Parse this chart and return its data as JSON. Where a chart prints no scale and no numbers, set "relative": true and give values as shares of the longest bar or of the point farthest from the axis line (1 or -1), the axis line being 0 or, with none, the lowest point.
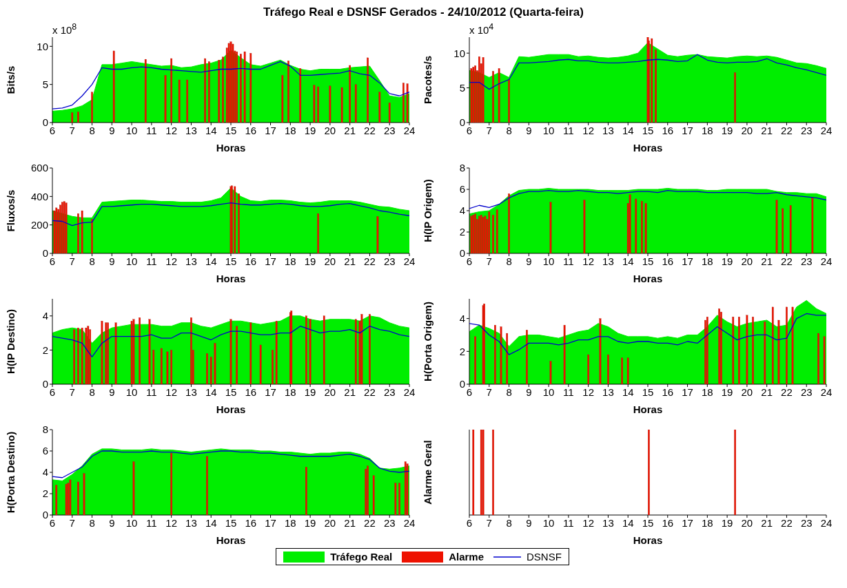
{
  "chart_data": [
    {
      "type": "area",
      "title": "Tráfego Real e DSNSF Gerados - 24/10/2012 (Quarta-feira)",
      "xlabel": "Horas",
      "ylabel": "Bits/s",
      "annotations": [
        "x 10$^{8}$"
      ],
      "legend": "bottom",
      "xlim": [
        6,
        24
      ],
      "xticks": [
        6,
        7,
        8,
        9,
        10,
        11,
        12,
        13,
        14,
        15,
        16,
        17,
        18,
        19,
        20,
        21,
        22,
        23,
        24
      ],
      "ylim": [
        0,
        11.2
      ],
      "yticks": [
        0,
        5,
        10
      ],
      "x": [
        6,
        6.5,
        7,
        7.5,
        8,
        8.5,
        9,
        9.5,
        10,
        10.5,
        11,
        11.5,
        12,
        12.5,
        13,
        13.5,
        14,
        14.5,
        15,
        15.5,
        16,
        16.5,
        17,
        17.5,
        18,
        18.5,
        19,
        19.5,
        20,
        20.5,
        21,
        21.5,
        22,
        22.5,
        23,
        23.5,
        24
      ],
      "series": [
        {
          "name": "Tráfego Real",
          "color": "#00ee00",
          "values": [
            1.5,
            1.6,
            1.8,
            2.2,
            3,
            7.6,
            7.6,
            7.8,
            8,
            7.8,
            7.6,
            7.4,
            7.5,
            7.2,
            7.3,
            7.6,
            7.8,
            8.2,
            9.5,
            8.5,
            7.6,
            7.4,
            7.8,
            8.2,
            7.5,
            7,
            6.8,
            7,
            7,
            7,
            7.2,
            7.3,
            7.4,
            5.5,
            3.5,
            3.3,
            3.8
          ]
        },
        {
          "name": "Alarme",
          "type": "bar",
          "color": "#ee1100",
          "x": [
            7,
            7.3,
            8,
            9.1,
            10.7,
            11.7,
            12,
            12.4,
            12.8,
            13.7,
            13.9,
            14.4,
            14.6,
            14.8,
            14.9,
            15,
            15.1,
            15.2,
            15.3,
            15.5,
            15.7,
            16,
            17.6,
            17.9,
            18.5,
            19.2,
            19.4,
            20,
            20.6,
            21,
            21.3,
            21.9,
            22.5,
            23,
            23.7,
            23.9
          ],
          "values": [
            1.3,
            1.4,
            4,
            9.4,
            8.3,
            6.2,
            8.4,
            5.6,
            5.6,
            8.4,
            8,
            8.2,
            8.6,
            9.8,
            10.4,
            10.6,
            10.3,
            9.4,
            9.3,
            9,
            9.3,
            9.1,
            6.2,
            8.1,
            7.1,
            4.9,
            4.7,
            4.8,
            4.6,
            7.5,
            5,
            8.5,
            4,
            2.6,
            5.2,
            5.1
          ]
        },
        {
          "name": "DSNSF",
          "type": "line",
          "color": "#0000cc",
          "values": [
            1.8,
            1.9,
            2.3,
            3.5,
            5,
            7.2,
            7,
            7,
            7.2,
            7.3,
            7.2,
            7,
            6.9,
            6.8,
            6.7,
            6.6,
            6.8,
            7,
            7,
            7.1,
            7,
            7,
            7.5,
            8,
            7.4,
            6.2,
            6.2,
            6.3,
            6.4,
            6.5,
            6.8,
            6.4,
            6.2,
            5.2,
            3.8,
            3.5,
            4
          ]
        }
      ]
    },
    {
      "type": "area",
      "xlabel": "Horas",
      "ylabel": "Pacotes/s",
      "annotations": [
        "x 10$^{4}$"
      ],
      "xlim": [
        6,
        24
      ],
      "xticks": [
        6,
        7,
        8,
        9,
        10,
        11,
        12,
        13,
        14,
        15,
        16,
        17,
        18,
        19,
        20,
        21,
        22,
        23,
        24
      ],
      "ylim": [
        0,
        12.3
      ],
      "yticks": [
        0,
        5,
        10
      ],
      "x": [
        6,
        6.5,
        7,
        7.5,
        8,
        8.5,
        9,
        9.5,
        10,
        10.5,
        11,
        11.5,
        12,
        12.5,
        13,
        13.5,
        14,
        14.5,
        15,
        15.5,
        16,
        16.5,
        17,
        17.5,
        18,
        18.5,
        19,
        19.5,
        20,
        20.5,
        21,
        21.5,
        22,
        22.5,
        23,
        23.5,
        24
      ],
      "series": [
        {
          "name": "Tráfego Real",
          "color": "#00ee00",
          "values": [
            7.5,
            7.2,
            6.5,
            7.2,
            6.5,
            9.5,
            9.4,
            9.6,
            9.8,
            9.8,
            9.8,
            9.5,
            9.6,
            9.4,
            9.3,
            9.4,
            9.6,
            10,
            11.5,
            10.6,
            9.7,
            9.5,
            9.7,
            9.8,
            9.5,
            9.4,
            9.3,
            9.5,
            9.6,
            9.5,
            9.6,
            9.4,
            9,
            8.6,
            8.5,
            8.2,
            7.8
          ]
        },
        {
          "name": "Alarme",
          "type": "bar",
          "color": "#ee1100",
          "x": [
            6.1,
            6.2,
            6.3,
            6.4,
            6.5,
            6.6,
            6.7,
            7.2,
            7.5,
            8,
            15,
            15.05,
            15.2,
            15.4,
            19.4
          ],
          "values": [
            7.8,
            8,
            8.2,
            7.5,
            9.5,
            8.5,
            9.4,
            7.4,
            7.8,
            6.2,
            12.3,
            11.8,
            12.1,
            10.5,
            7.2
          ]
        },
        {
          "name": "DSNSF",
          "type": "line",
          "color": "#0000cc",
          "values": [
            5.8,
            5.8,
            4.8,
            5.6,
            6.2,
            8.6,
            8.6,
            8.7,
            8.8,
            9,
            9.1,
            8.9,
            8.9,
            8.7,
            8.6,
            8.6,
            8.7,
            8.8,
            9,
            9.1,
            9,
            8.8,
            8.9,
            9.8,
            9,
            8.7,
            8.6,
            8.7,
            8.7,
            8.8,
            9.2,
            8.6,
            8.3,
            7.9,
            7.6,
            7.2,
            6.8
          ]
        }
      ]
    },
    {
      "type": "area",
      "xlabel": "Horas",
      "ylabel": "Fluxos/s",
      "xlim": [
        6,
        24
      ],
      "xticks": [
        6,
        7,
        8,
        9,
        10,
        11,
        12,
        13,
        14,
        15,
        16,
        17,
        18,
        19,
        20,
        21,
        22,
        23,
        24
      ],
      "ylim": [
        0,
        600
      ],
      "yticks": [
        0,
        200,
        400,
        600
      ],
      "x": [
        6,
        6.5,
        7,
        7.5,
        8,
        8.5,
        9,
        9.5,
        10,
        10.5,
        11,
        11.5,
        12,
        12.5,
        13,
        13.5,
        14,
        14.5,
        15,
        15.5,
        16,
        16.5,
        17,
        17.5,
        18,
        18.5,
        19,
        19.5,
        20,
        20.5,
        21,
        21.5,
        22,
        22.5,
        23,
        23.5,
        24
      ],
      "series": [
        {
          "name": "Tráfego Real",
          "color": "#00ee00",
          "values": [
            300,
            280,
            260,
            250,
            250,
            360,
            365,
            370,
            375,
            375,
            370,
            365,
            365,
            360,
            360,
            360,
            370,
            390,
            460,
            400,
            370,
            365,
            375,
            375,
            370,
            360,
            355,
            360,
            370,
            370,
            370,
            360,
            345,
            330,
            325,
            310,
            300
          ]
        },
        {
          "name": "Alarme",
          "type": "bar",
          "color": "#ee1100",
          "x": [
            6.1,
            6.2,
            6.3,
            6.4,
            6.5,
            6.6,
            6.7,
            7.3,
            7.5,
            8,
            15,
            15.05,
            15.2,
            15.4,
            19.4,
            22.4
          ],
          "values": [
            300,
            320,
            310,
            340,
            360,
            365,
            355,
            280,
            300,
            240,
            470,
            475,
            470,
            420,
            280,
            260
          ]
        },
        {
          "name": "DSNSF",
          "type": "line",
          "color": "#0000cc",
          "values": [
            230,
            225,
            195,
            215,
            220,
            330,
            330,
            335,
            340,
            345,
            345,
            340,
            335,
            330,
            330,
            330,
            335,
            345,
            355,
            345,
            340,
            340,
            345,
            350,
            345,
            335,
            330,
            330,
            335,
            345,
            350,
            335,
            320,
            300,
            290,
            275,
            265
          ]
        }
      ]
    },
    {
      "type": "area",
      "xlabel": "Horas",
      "ylabel": "H(IP Origem)",
      "xlim": [
        6,
        24
      ],
      "xticks": [
        6,
        7,
        8,
        9,
        10,
        11,
        12,
        13,
        14,
        15,
        16,
        17,
        18,
        19,
        20,
        21,
        22,
        23,
        24
      ],
      "ylim": [
        0,
        8
      ],
      "yticks": [
        0,
        2,
        4,
        6,
        8
      ],
      "x": [
        6,
        6.5,
        7,
        7.5,
        8,
        8.5,
        9,
        9.5,
        10,
        10.5,
        11,
        11.5,
        12,
        12.5,
        13,
        13.5,
        14,
        14.5,
        15,
        15.5,
        16,
        16.5,
        17,
        17.5,
        18,
        18.5,
        19,
        19.5,
        20,
        20.5,
        21,
        21.5,
        22,
        22.5,
        23,
        23.5,
        24
      ],
      "series": [
        {
          "name": "Tráfego Real",
          "color": "#00ee00",
          "values": [
            3.7,
            3.9,
            4,
            4.6,
            5.4,
            5.9,
            6,
            6,
            6.1,
            6,
            6,
            6,
            6,
            5.9,
            5.9,
            5.9,
            5.9,
            6,
            6,
            6,
            6.1,
            6,
            6,
            6,
            5.9,
            5.9,
            6,
            6,
            6,
            6,
            6,
            5.8,
            5.7,
            5.7,
            5.6,
            5.6,
            5.3
          ]
        },
        {
          "name": "Alarme",
          "type": "bar",
          "color": "#ee1100",
          "x": [
            6.1,
            6.2,
            6.3,
            6.4,
            6.5,
            6.6,
            6.7,
            6.8,
            6.9,
            7,
            7.2,
            7.4,
            8,
            10.1,
            11.8,
            14,
            14.1,
            14.4,
            14.7,
            14.9,
            21.5,
            21.8,
            22.2,
            23.3
          ],
          "values": [
            3.5,
            3.6,
            3.7,
            3.2,
            3.5,
            3.6,
            3.4,
            3.5,
            3.2,
            3.9,
            3.6,
            4.1,
            5.6,
            4.8,
            5,
            4.7,
            5.5,
            5.1,
            4.9,
            4.7,
            5,
            4.2,
            4.5,
            5.2
          ]
        },
        {
          "name": "DSNSF",
          "type": "line",
          "color": "#0000cc",
          "values": [
            4.2,
            4.5,
            4.3,
            4.6,
            5.2,
            5.6,
            5.8,
            5.8,
            5.9,
            5.8,
            5.8,
            5.9,
            5.8,
            5.7,
            5.7,
            5.6,
            5.7,
            5.8,
            5.8,
            5.7,
            5.9,
            5.8,
            5.8,
            5.8,
            5.7,
            5.7,
            5.7,
            5.7,
            5.7,
            5.6,
            5.6,
            5.7,
            5.5,
            5.4,
            5.3,
            5.2,
            5
          ]
        }
      ]
    },
    {
      "type": "area",
      "xlabel": "Horas",
      "ylabel": "H(IP Destino)",
      "xlim": [
        6,
        24
      ],
      "xticks": [
        6,
        7,
        8,
        9,
        10,
        11,
        12,
        13,
        14,
        15,
        16,
        17,
        18,
        19,
        20,
        21,
        22,
        23,
        24
      ],
      "ylim": [
        0,
        5
      ],
      "yticks": [
        0,
        2,
        4
      ],
      "x": [
        6,
        6.5,
        7,
        7.5,
        8,
        8.5,
        9,
        9.5,
        10,
        10.5,
        11,
        11.5,
        12,
        12.5,
        13,
        13.5,
        14,
        14.5,
        15,
        15.5,
        16,
        16.5,
        17,
        17.5,
        18,
        18.5,
        19,
        19.5,
        20,
        20.5,
        21,
        21.5,
        22,
        22.5,
        23,
        23.5,
        24
      ],
      "series": [
        {
          "name": "Tráfego Real",
          "color": "#00ee00",
          "values": [
            3,
            3.2,
            3.3,
            3.2,
            2.4,
            3,
            3.3,
            3.4,
            3.5,
            3.5,
            3.5,
            3.4,
            3.4,
            3.6,
            3.6,
            3.4,
            3.3,
            3.5,
            3.7,
            3.7,
            3.6,
            3.5,
            3.6,
            3.7,
            4,
            4,
            3.8,
            3.7,
            3.8,
            3.8,
            3.8,
            3.7,
            4,
            3.9,
            3.6,
            3.4,
            3.3
          ]
        },
        {
          "name": "Alarme",
          "type": "bar",
          "color": "#ee1100",
          "x": [
            7.1,
            7.3,
            7.5,
            7.7,
            7.8,
            7.9,
            8.5,
            8.7,
            8.8,
            9.2,
            10,
            10.1,
            10.4,
            10.9,
            11.1,
            11.5,
            11.8,
            12,
            13,
            13.1,
            13.8,
            14,
            14.2,
            15,
            15.3,
            16,
            16.5,
            17.1,
            17.3,
            18,
            18.05,
            18.8,
            19,
            19.7,
            21.3,
            21.5,
            21.6,
            22
          ],
          "values": [
            3.2,
            3.3,
            3.3,
            3.3,
            3.4,
            3.2,
            3.7,
            3.6,
            3.6,
            3.6,
            3.7,
            3.8,
            3.9,
            3.8,
            2,
            2.1,
            1.9,
            2,
            3.9,
            2,
            1.8,
            1.6,
            2.4,
            3.8,
            3.4,
            3.6,
            2.3,
            2,
            3.7,
            4.2,
            4.3,
            4,
            3.8,
            4,
            3.8,
            3.7,
            4.1,
            4.1
          ]
        },
        {
          "name": "DSNSF",
          "type": "line",
          "color": "#0000cc",
          "values": [
            2.8,
            2.7,
            2.6,
            2.4,
            1.6,
            2.4,
            2.8,
            2.8,
            2.8,
            2.8,
            2.9,
            2.7,
            2.7,
            3,
            3,
            2.8,
            2.6,
            2.9,
            3.1,
            3.1,
            3,
            2.9,
            2.9,
            3,
            3,
            3.4,
            3.2,
            3,
            3.1,
            3.1,
            3.2,
            3,
            3.4,
            3.2,
            3.1,
            2.9,
            2.8
          ]
        }
      ]
    },
    {
      "type": "area",
      "xlabel": "Horas",
      "ylabel": "H(Porta Origem)",
      "xlim": [
        6,
        24
      ],
      "xticks": [
        6,
        7,
        8,
        9,
        10,
        11,
        12,
        13,
        14,
        15,
        16,
        17,
        18,
        19,
        20,
        21,
        22,
        23,
        24
      ],
      "ylim": [
        0,
        5.2
      ],
      "yticks": [
        0,
        2,
        4
      ],
      "x": [
        6,
        6.5,
        7,
        7.5,
        8,
        8.5,
        9,
        9.5,
        10,
        10.5,
        11,
        11.5,
        12,
        12.5,
        13,
        13.5,
        14,
        14.5,
        15,
        15.5,
        16,
        16.5,
        17,
        17.5,
        18,
        18.5,
        19,
        19.5,
        20,
        20.5,
        21,
        21.5,
        22,
        22.5,
        23,
        23.5,
        24
      ],
      "series": [
        {
          "name": "Tráfego Real",
          "color": "#00ee00",
          "values": [
            3.2,
            3.6,
            3.4,
            3.1,
            2.3,
            2.9,
            3,
            3,
            2.9,
            2.8,
            3,
            3.2,
            3.3,
            3.7,
            3.5,
            3.1,
            2.9,
            2.9,
            2.9,
            2.8,
            2.9,
            2.8,
            3,
            3,
            3.5,
            4.2,
            3.8,
            3.5,
            3.7,
            3.8,
            3.9,
            3.5,
            3.6,
            4.7,
            5.1,
            4.6,
            4.3
          ]
        },
        {
          "name": "Alarme",
          "type": "bar",
          "color": "#ee1100",
          "x": [
            6.3,
            6.7,
            6.75,
            7.3,
            7.6,
            7.9,
            8.9,
            10.1,
            10.8,
            12,
            12.6,
            13,
            13.7,
            14,
            17.9,
            18,
            18.6,
            18.7,
            19.3,
            19.6,
            20,
            20.3,
            20.9,
            21.3,
            21.6,
            22,
            22.3,
            23.6,
            23.9
          ],
          "values": [
            2.9,
            4.8,
            4.9,
            3.6,
            3.5,
            3.1,
            3.3,
            1.4,
            3.6,
            1.8,
            4,
            1.8,
            1.6,
            1.6,
            3.9,
            4.1,
            4.6,
            4.4,
            4.1,
            4.1,
            4.2,
            4.1,
            3.8,
            4.7,
            3.9,
            4.7,
            4.7,
            3.1,
            2.9
          ]
        },
        {
          "name": "DSNSF",
          "type": "line",
          "color": "#0000cc",
          "values": [
            3.7,
            3.6,
            3,
            2.6,
            1.8,
            2.1,
            2.5,
            2.5,
            2.5,
            2.4,
            2.5,
            2.7,
            2.7,
            2.9,
            2.9,
            2.6,
            2.5,
            2.6,
            2.6,
            2.5,
            2.5,
            2.4,
            2.6,
            2.5,
            3,
            3.5,
            3.1,
            2.7,
            2.9,
            3,
            3,
            2.7,
            2.8,
            4,
            4.3,
            4.2,
            4.2
          ]
        }
      ]
    },
    {
      "type": "area",
      "xlabel": "Horas",
      "ylabel": "H(Porta Destino)",
      "xlim": [
        6,
        24
      ],
      "xticks": [
        6,
        7,
        8,
        9,
        10,
        11,
        12,
        13,
        14,
        15,
        16,
        17,
        18,
        19,
        20,
        21,
        22,
        23,
        24
      ],
      "ylim": [
        0,
        8
      ],
      "yticks": [
        0,
        2,
        4,
        6,
        8
      ],
      "x": [
        6,
        6.5,
        7,
        7.5,
        8,
        8.5,
        9,
        9.5,
        10,
        10.5,
        11,
        11.5,
        12,
        12.5,
        13,
        13.5,
        14,
        14.5,
        15,
        15.5,
        16,
        16.5,
        17,
        17.5,
        18,
        18.5,
        19,
        19.5,
        20,
        20.5,
        21,
        21.5,
        22,
        22.5,
        23,
        23.5,
        24
      ],
      "series": [
        {
          "name": "Tráfego Real",
          "color": "#00ee00",
          "values": [
            3.3,
            3.2,
            3.8,
            4.6,
            5.7,
            6.2,
            6.2,
            6.1,
            6.1,
            6.1,
            6.2,
            6.1,
            6.1,
            6,
            5.9,
            6,
            6.1,
            6.2,
            6.1,
            6.1,
            6.1,
            6,
            6,
            5.9,
            5.9,
            5.8,
            5.7,
            5.8,
            5.8,
            5.9,
            5.9,
            5.7,
            5.3,
            4.4,
            4.3,
            4.4,
            4.6
          ]
        },
        {
          "name": "Alarme",
          "type": "bar",
          "color": "#ee1100",
          "x": [
            6.2,
            6.7,
            6.8,
            6.9,
            7.3,
            7.6,
            10.1,
            12,
            13.8,
            18.8,
            21.8,
            21.9,
            22.2,
            23.3,
            23.5,
            23.8,
            23.9
          ],
          "values": [
            2.8,
            2.9,
            3,
            3.3,
            3.1,
            3.9,
            5,
            5.8,
            5.5,
            4.5,
            4.3,
            4.6,
            3.7,
            3,
            3,
            5,
            4.8
          ]
        },
        {
          "name": "DSNSF",
          "type": "line",
          "color": "#0000cc",
          "values": [
            3.6,
            3.5,
            4,
            4.5,
            5.5,
            6,
            6,
            5.9,
            5.9,
            5.9,
            6,
            5.9,
            5.9,
            5.8,
            5.7,
            5.8,
            5.9,
            6,
            6,
            5.9,
            5.9,
            5.8,
            5.8,
            5.7,
            5.6,
            5.5,
            5.5,
            5.5,
            5.5,
            5.6,
            5.7,
            5.5,
            5.2,
            4.4,
            4.1,
            4,
            4.1
          ]
        }
      ]
    },
    {
      "type": "bar",
      "xlabel": "Horas",
      "ylabel": "Alarme Geral",
      "relative": true,
      "xlim": [
        6,
        24
      ],
      "xticks": [
        6,
        7,
        8,
        9,
        10,
        11,
        12,
        13,
        14,
        15,
        16,
        17,
        18,
        19,
        20,
        21,
        22,
        23,
        24
      ],
      "series": [
        {
          "name": "Alarme",
          "color": "#ee1100",
          "x": [
            6.2,
            6.6,
            6.7,
            7.2,
            15.05,
            19.4
          ],
          "values": [
            1,
            1,
            1,
            1,
            1,
            1
          ]
        }
      ]
    }
  ]
}
